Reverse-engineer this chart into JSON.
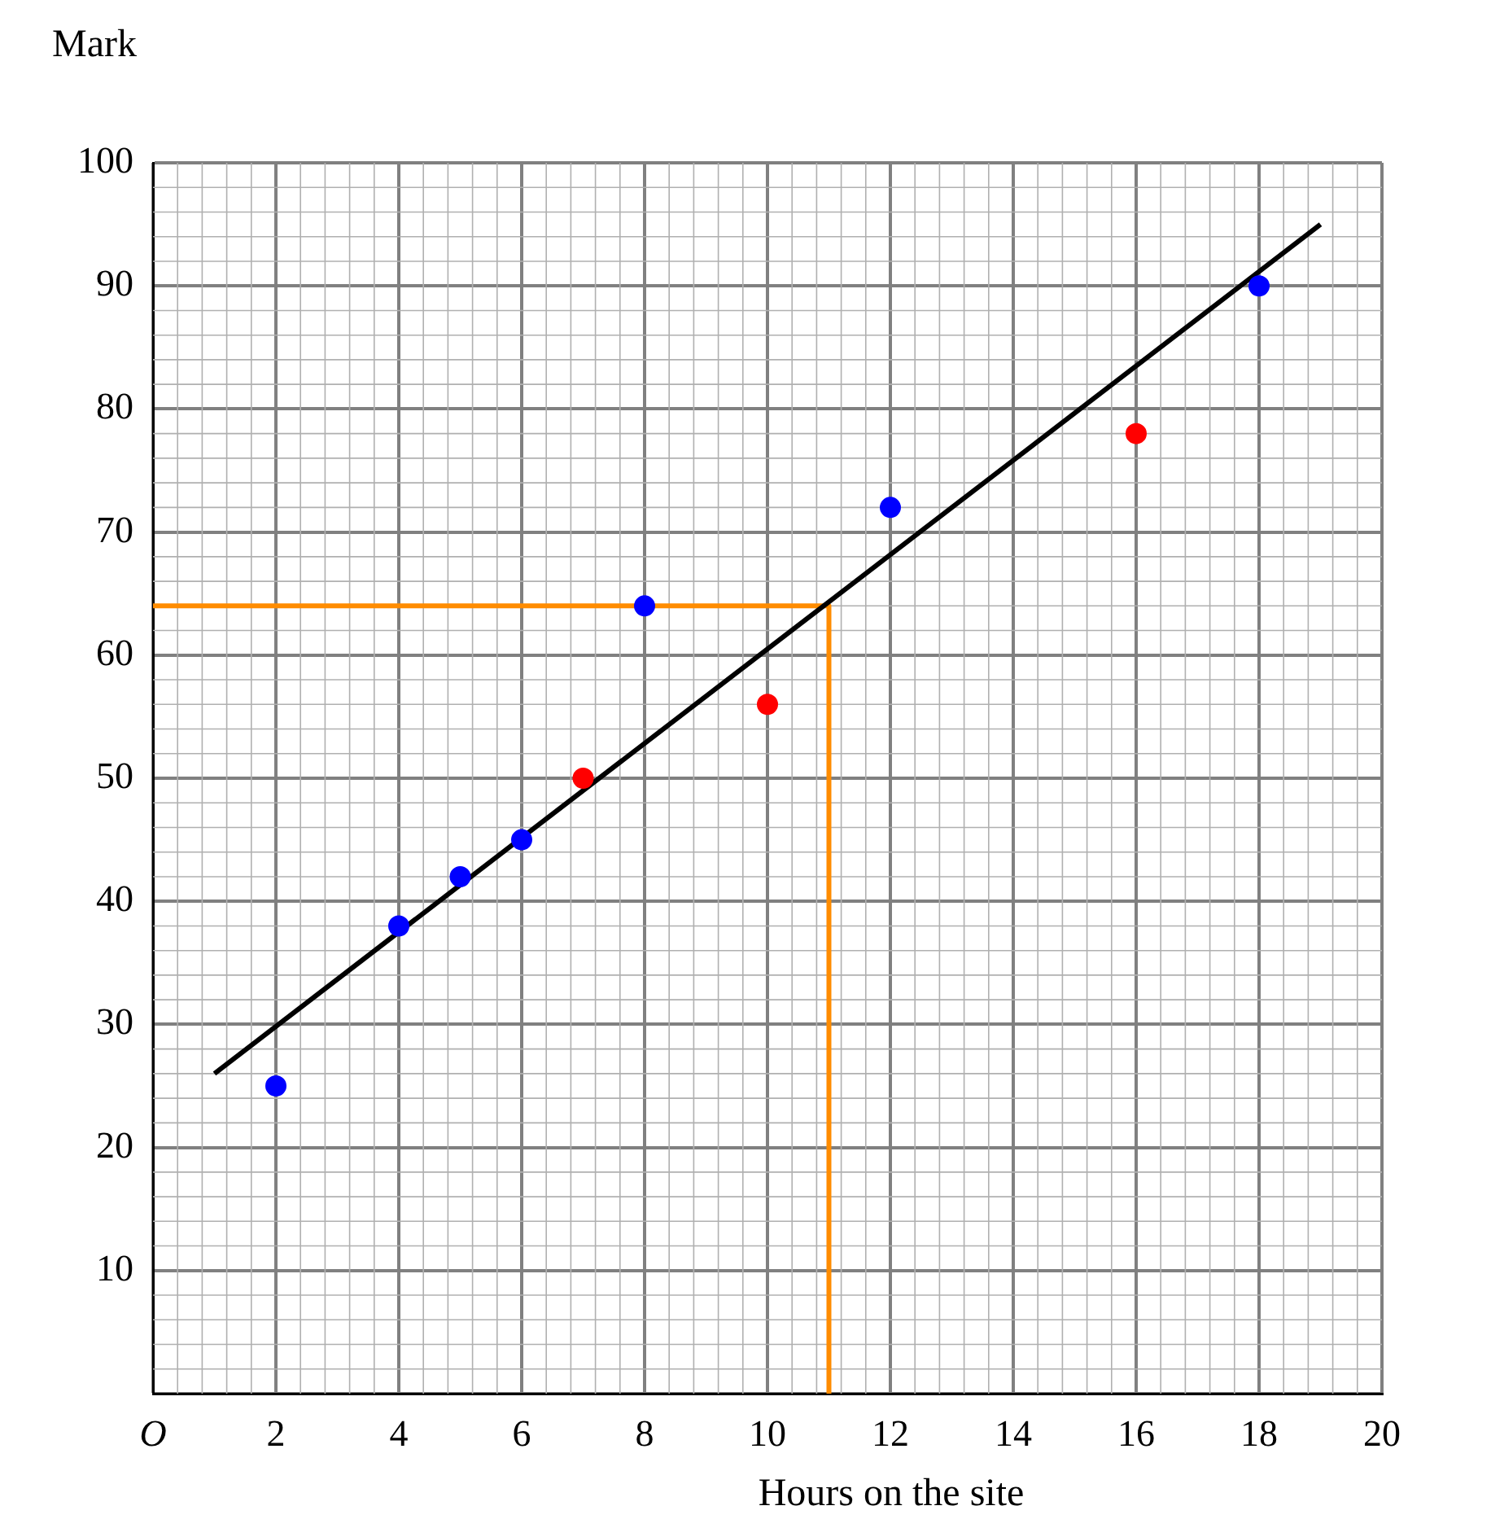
{
  "chart_data": {
    "type": "scatter",
    "xlabel": "Hours on the site",
    "ylabel": "Mark",
    "xlim": [
      0,
      20
    ],
    "ylim": [
      0,
      100
    ],
    "xticks": [
      {
        "value": 0,
        "label": "O"
      },
      2,
      4,
      6,
      8,
      10,
      12,
      14,
      16,
      18,
      20
    ],
    "yticks": [
      {
        "value": 0,
        "label": null
      },
      10,
      20,
      30,
      40,
      50,
      60,
      70,
      80,
      90,
      100
    ],
    "grid": true,
    "legend": false,
    "marker": "circle",
    "series": [
      {
        "type": "line",
        "color": "#000000",
        "x": [
          1,
          19
        ],
        "values": [
          26,
          95
        ],
        "marker": "none"
      },
      {
        "type": "line",
        "color": "#ff8c00",
        "x": [
          0,
          11,
          11
        ],
        "values": [
          64,
          64,
          0
        ],
        "marker": "none"
      },
      {
        "type": "scatter",
        "color": "#0000ff",
        "x": [
          2,
          4,
          5,
          6,
          8,
          12,
          18
        ],
        "values": [
          25,
          38,
          42,
          45,
          64,
          72,
          90
        ]
      },
      {
        "type": "scatter",
        "color": "#ff0000",
        "x": [
          7,
          10,
          16
        ],
        "values": [
          50,
          56,
          78
        ]
      }
    ]
  }
}
